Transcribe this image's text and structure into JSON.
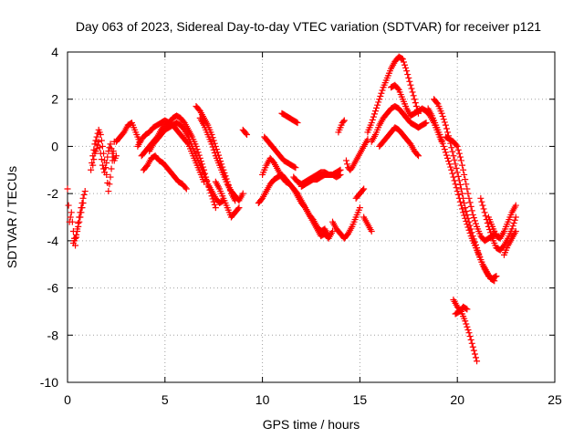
{
  "chart_data": {
    "type": "scatter",
    "title": "Day 063 of 2023, Sidereal Day-to-day VTEC variation (SDTVAR) for receiver p121",
    "xlabel": "GPS time / hours",
    "ylabel": "SDTVAR / TECUs",
    "xlim": [
      0,
      25
    ],
    "ylim": [
      -10,
      4
    ],
    "xticks": [
      0,
      5,
      10,
      15,
      20,
      25
    ],
    "yticks": [
      -10,
      -8,
      -6,
      -4,
      -2,
      0,
      2,
      4
    ],
    "xtick_labels": [
      "0",
      "5",
      "10",
      "15",
      "20",
      "25"
    ],
    "ytick_labels": [
      "-10",
      "-8",
      "-6",
      "-4",
      "-2",
      "0",
      "2",
      "4"
    ],
    "grid": true,
    "marker": "+",
    "color": "#ff0000",
    "series": [
      {
        "name": "s1",
        "x": [
          0.0,
          0.1,
          0.2,
          0.3,
          0.4,
          0.5,
          0.6,
          0.7,
          0.8,
          0.9
        ],
        "y": [
          -1.8,
          -3.2,
          -2.8,
          -3.6,
          -4.2,
          -3.5,
          -3.0,
          -2.6,
          -2.2,
          -1.9
        ]
      },
      {
        "name": "s2",
        "x": [
          0.3,
          0.4,
          0.5,
          0.6,
          0.7,
          0.8
        ],
        "y": [
          -4.1,
          -3.9,
          -3.6,
          -3.2,
          -2.8,
          -2.4
        ]
      },
      {
        "name": "s3",
        "x": [
          1.2,
          1.3,
          1.4,
          1.5,
          1.6,
          1.7,
          1.8,
          1.9,
          2.0,
          2.1,
          2.2,
          2.3,
          2.4
        ],
        "y": [
          -1.0,
          -0.4,
          0.1,
          0.4,
          0.7,
          0.5,
          0.0,
          -0.6,
          -1.2,
          -1.9,
          -1.3,
          -0.6,
          0.2
        ]
      },
      {
        "name": "s4",
        "x": [
          1.3,
          1.4,
          1.5,
          1.6,
          1.7,
          1.8,
          1.9,
          2.0,
          2.1,
          2.2,
          2.3,
          2.4,
          2.5
        ],
        "y": [
          -0.8,
          -0.3,
          -0.1,
          0.2,
          -0.3,
          -0.8,
          -1.1,
          -0.7,
          -0.2,
          0.1,
          -0.3,
          -0.6,
          -0.4
        ]
      },
      {
        "name": "s5",
        "x": [
          2.5,
          2.7,
          2.9,
          3.1,
          3.3,
          3.5,
          3.7
        ],
        "y": [
          0.2,
          0.4,
          0.6,
          0.9,
          1.0,
          0.6,
          0.2
        ]
      },
      {
        "name": "s6",
        "x": [
          3.6,
          3.8,
          4.0,
          4.2,
          4.4,
          4.6,
          4.8,
          5.0,
          5.2,
          5.4,
          5.6,
          5.8,
          6.0,
          6.2,
          6.4,
          6.6,
          6.8,
          7.0
        ],
        "y": [
          0.0,
          0.3,
          0.5,
          0.6,
          0.8,
          0.9,
          1.0,
          1.1,
          1.0,
          0.9,
          0.7,
          0.5,
          0.3,
          0.1,
          -0.3,
          -0.7,
          -1.1,
          -1.5
        ]
      },
      {
        "name": "s7",
        "x": [
          3.8,
          4.0,
          4.2,
          4.4,
          4.6,
          4.8,
          5.0,
          5.2,
          5.4,
          5.6,
          5.8,
          6.0,
          6.2,
          6.4,
          6.6,
          6.8,
          7.0,
          7.2,
          7.4,
          7.6
        ],
        "y": [
          -0.4,
          -0.2,
          0.0,
          0.2,
          0.4,
          0.7,
          0.9,
          1.0,
          1.2,
          1.3,
          1.2,
          1.0,
          0.7,
          0.4,
          0.0,
          -0.5,
          -1.0,
          -1.6,
          -2.1,
          -2.6
        ]
      },
      {
        "name": "s8",
        "x": [
          3.9,
          4.1,
          4.3,
          4.5,
          4.7,
          4.9,
          5.1,
          5.3,
          5.5,
          5.7,
          5.9,
          6.1
        ],
        "y": [
          -1.0,
          -0.8,
          -0.5,
          -0.4,
          -0.6,
          -0.7,
          -0.9,
          -1.1,
          -1.3,
          -1.5,
          -1.6,
          -1.8
        ]
      },
      {
        "name": "s9",
        "x": [
          4.2,
          4.4,
          4.6,
          4.8,
          5.0,
          5.2,
          5.4,
          5.6,
          5.8,
          6.0,
          6.2,
          6.4,
          6.6,
          6.8,
          7.0,
          7.2,
          7.4,
          7.6,
          7.8,
          8.0
        ],
        "y": [
          -0.2,
          0.1,
          0.3,
          0.5,
          0.7,
          0.8,
          0.9,
          1.0,
          0.9,
          0.7,
          0.4,
          0.0,
          -0.4,
          -0.8,
          -1.2,
          -1.6,
          -1.9,
          -2.2,
          -2.4,
          -2.3
        ]
      },
      {
        "name": "s10",
        "x": [
          6.6,
          6.8,
          7.0,
          7.2,
          7.4,
          7.6,
          7.8,
          8.0,
          8.2,
          8.4,
          8.6
        ],
        "y": [
          1.7,
          1.5,
          1.2,
          0.9,
          0.5,
          0.0,
          -0.5,
          -1.0,
          -1.5,
          -2.0,
          -2.3
        ]
      },
      {
        "name": "s11",
        "x": [
          6.8,
          7.0,
          7.2,
          7.4,
          7.6,
          7.8,
          8.0,
          8.2,
          8.4,
          8.6,
          8.8,
          9.0
        ],
        "y": [
          1.2,
          0.9,
          0.5,
          0.1,
          -0.4,
          -0.8,
          -1.2,
          -1.6,
          -1.9,
          -2.1,
          -2.3,
          -2.0
        ]
      },
      {
        "name": "s12",
        "x": [
          7.6,
          7.8,
          8.0,
          8.2,
          8.4,
          8.6,
          8.8
        ],
        "y": [
          -1.5,
          -1.8,
          -2.2,
          -2.6,
          -3.0,
          -2.8,
          -2.6
        ]
      },
      {
        "name": "s13",
        "x": [
          9.0,
          9.1,
          9.2
        ],
        "y": [
          0.7,
          0.6,
          0.5
        ]
      },
      {
        "name": "s14",
        "x": [
          9.8,
          10.0,
          10.2,
          10.4,
          10.6,
          10.8,
          11.0,
          11.2,
          11.4,
          11.6,
          11.8,
          12.0,
          12.2,
          12.4,
          12.6,
          12.8,
          13.0,
          13.2,
          13.4,
          13.6
        ],
        "y": [
          -2.4,
          -2.2,
          -1.9,
          -1.6,
          -1.4,
          -1.3,
          -1.2,
          -1.4,
          -1.6,
          -1.8,
          -2.0,
          -2.3,
          -2.6,
          -2.9,
          -3.2,
          -3.5,
          -3.8,
          -3.7,
          -3.9,
          -3.6
        ]
      },
      {
        "name": "s15",
        "x": [
          10.0,
          10.2,
          10.4,
          10.6,
          10.8,
          11.0,
          11.2,
          11.4,
          11.6,
          11.8,
          12.0,
          12.2,
          12.4,
          12.6,
          12.8,
          13.0,
          13.2,
          13.4
        ],
        "y": [
          -1.2,
          -0.8,
          -0.5,
          -0.7,
          -1.0,
          -1.3,
          -1.5,
          -1.6,
          -1.8,
          -2.1,
          -2.4,
          -2.6,
          -2.9,
          -3.1,
          -3.4,
          -3.6,
          -3.5,
          -3.8
        ]
      },
      {
        "name": "s16",
        "x": [
          10.1,
          10.3,
          10.5,
          10.7,
          10.9,
          11.1,
          11.3,
          11.5,
          11.7
        ],
        "y": [
          0.4,
          0.2,
          0.0,
          -0.2,
          -0.4,
          -0.6,
          -0.7,
          -0.8,
          -0.9
        ]
      },
      {
        "name": "s17",
        "x": [
          11.0,
          11.2,
          11.4,
          11.6,
          11.8
        ],
        "y": [
          1.4,
          1.3,
          1.2,
          1.1,
          1.0
        ]
      },
      {
        "name": "s18",
        "x": [
          11.6,
          11.8,
          12.0,
          12.2,
          12.4,
          12.6,
          12.8,
          13.0,
          13.2,
          13.4,
          13.6,
          13.8,
          14.0
        ],
        "y": [
          -1.3,
          -1.5,
          -1.6,
          -1.5,
          -1.4,
          -1.3,
          -1.2,
          -1.1,
          -1.1,
          -1.2,
          -1.2,
          -1.1,
          -1.0
        ]
      },
      {
        "name": "s19",
        "x": [
          12.0,
          12.2,
          12.4,
          12.6,
          12.8,
          13.0,
          13.2,
          13.4,
          13.6,
          13.8,
          14.0
        ],
        "y": [
          -1.7,
          -1.6,
          -1.5,
          -1.4,
          -1.4,
          -1.3,
          -1.2,
          -1.2,
          -1.2,
          -1.3,
          -1.2
        ]
      },
      {
        "name": "s20",
        "x": [
          13.6,
          13.8,
          14.0,
          14.2,
          14.4,
          14.6,
          14.8,
          15.0
        ],
        "y": [
          -3.2,
          -3.5,
          -3.7,
          -3.9,
          -3.7,
          -3.4,
          -3.0,
          -2.6
        ]
      },
      {
        "name": "s21",
        "x": [
          13.9,
          14.0,
          14.1,
          14.2
        ],
        "y": [
          0.6,
          0.8,
          1.0,
          1.1
        ]
      },
      {
        "name": "s22",
        "x": [
          14.3,
          14.4,
          14.5,
          14.6,
          14.8,
          15.0,
          15.2,
          15.4
        ],
        "y": [
          -0.6,
          -0.9,
          -1.0,
          -0.9,
          -0.6,
          -0.3,
          0.0,
          0.3
        ]
      },
      {
        "name": "s23",
        "x": [
          15.2,
          15.4,
          15.6
        ],
        "y": [
          -3.0,
          -3.3,
          -3.6
        ]
      },
      {
        "name": "s24",
        "x": [
          14.8,
          15.0,
          15.2
        ],
        "y": [
          -2.2,
          -2.0,
          -1.8
        ]
      },
      {
        "name": "s25",
        "x": [
          15.4,
          15.6,
          15.8,
          16.0,
          16.2,
          16.4,
          16.6,
          16.8,
          17.0,
          17.2,
          17.4,
          17.6,
          17.8,
          18.0
        ],
        "y": [
          0.6,
          1.0,
          1.5,
          2.0,
          2.5,
          2.9,
          3.3,
          3.6,
          3.8,
          3.7,
          3.2,
          2.6,
          2.0,
          1.4
        ]
      },
      {
        "name": "s26",
        "x": [
          15.6,
          15.8,
          16.0,
          16.2,
          16.4,
          16.6,
          16.8,
          17.0,
          17.2,
          17.4,
          17.6,
          17.8,
          18.0,
          18.2,
          18.4
        ],
        "y": [
          0.2,
          0.5,
          0.9,
          1.2,
          1.4,
          1.6,
          1.7,
          1.6,
          1.4,
          1.2,
          1.0,
          0.9,
          0.8,
          0.9,
          1.0
        ]
      },
      {
        "name": "s27",
        "x": [
          16.0,
          16.2,
          16.4,
          16.6,
          16.8,
          17.0,
          17.2,
          17.4,
          17.6,
          17.8,
          18.0
        ],
        "y": [
          0.0,
          0.2,
          0.4,
          0.6,
          0.8,
          0.7,
          0.5,
          0.3,
          0.1,
          -0.2,
          -0.4
        ]
      },
      {
        "name": "s28",
        "x": [
          16.6,
          16.8,
          17.0,
          17.2,
          17.4,
          17.6,
          17.8,
          18.0,
          18.2,
          18.4,
          18.6,
          18.8,
          19.0,
          19.2
        ],
        "y": [
          2.5,
          2.6,
          2.4,
          2.0,
          1.6,
          1.3,
          1.4,
          1.5,
          1.6,
          1.5,
          1.3,
          1.0,
          0.6,
          0.2
        ]
      },
      {
        "name": "s29",
        "x": [
          18.5,
          18.7,
          18.9,
          19.1,
          19.3,
          19.5,
          19.7,
          19.9,
          20.1,
          20.3,
          20.5,
          20.7,
          20.9,
          21.1,
          21.3,
          21.5,
          21.7,
          21.9
        ],
        "y": [
          1.6,
          1.3,
          0.9,
          0.5,
          0.0,
          -0.5,
          -1.0,
          -1.6,
          -2.2,
          -2.8,
          -3.3,
          -3.8,
          -4.2,
          -4.6,
          -5.0,
          -5.3,
          -5.6,
          -5.7
        ]
      },
      {
        "name": "s30",
        "x": [
          18.8,
          19.0,
          19.2,
          19.4,
          19.6,
          19.8,
          20.0,
          20.2,
          20.4,
          20.6,
          20.8,
          21.0,
          21.2,
          21.4,
          21.6,
          21.8,
          22.0
        ],
        "y": [
          2.0,
          1.8,
          1.4,
          0.9,
          0.3,
          -0.4,
          -1.1,
          -1.8,
          -2.6,
          -3.2,
          -3.8,
          -4.3,
          -4.8,
          -5.2,
          -5.5,
          -5.6,
          -5.5
        ]
      },
      {
        "name": "s31",
        "x": [
          19.4,
          19.6,
          19.8,
          20.0,
          20.2,
          20.4,
          20.6,
          20.8,
          21.0,
          21.2,
          21.4,
          21.6,
          21.8,
          22.0
        ],
        "y": [
          0.4,
          0.3,
          0.2,
          0.0,
          -0.6,
          -1.4,
          -2.2,
          -2.9,
          -3.4,
          -3.8,
          -4.0,
          -3.9,
          -3.8,
          -3.7
        ]
      },
      {
        "name": "s32",
        "x": [
          19.8,
          20.0,
          20.2,
          20.4,
          20.6,
          20.8,
          21.0
        ],
        "y": [
          -6.5,
          -6.8,
          -7.0,
          -7.4,
          -7.9,
          -8.5,
          -9.1
        ]
      },
      {
        "name": "s33",
        "x": [
          19.9,
          20.1,
          20.3,
          20.5
        ],
        "y": [
          -7.1,
          -7.0,
          -6.8,
          -6.9
        ]
      },
      {
        "name": "s34",
        "x": [
          21.2,
          21.4,
          21.6,
          21.8,
          22.0,
          22.2,
          22.4,
          22.6,
          22.8,
          23.0
        ],
        "y": [
          -2.2,
          -2.8,
          -3.4,
          -3.9,
          -4.3,
          -4.4,
          -4.2,
          -3.9,
          -3.5,
          -3.0
        ]
      },
      {
        "name": "s35",
        "x": [
          21.6,
          21.8,
          22.0,
          22.2,
          22.4,
          22.6,
          22.8,
          23.0
        ],
        "y": [
          -3.0,
          -3.4,
          -3.8,
          -3.9,
          -3.6,
          -3.2,
          -2.8,
          -2.5
        ]
      },
      {
        "name": "s36",
        "x": [
          22.4,
          22.6,
          22.8,
          23.0
        ],
        "y": [
          -4.6,
          -4.2,
          -3.9,
          -3.6
        ]
      }
    ]
  }
}
